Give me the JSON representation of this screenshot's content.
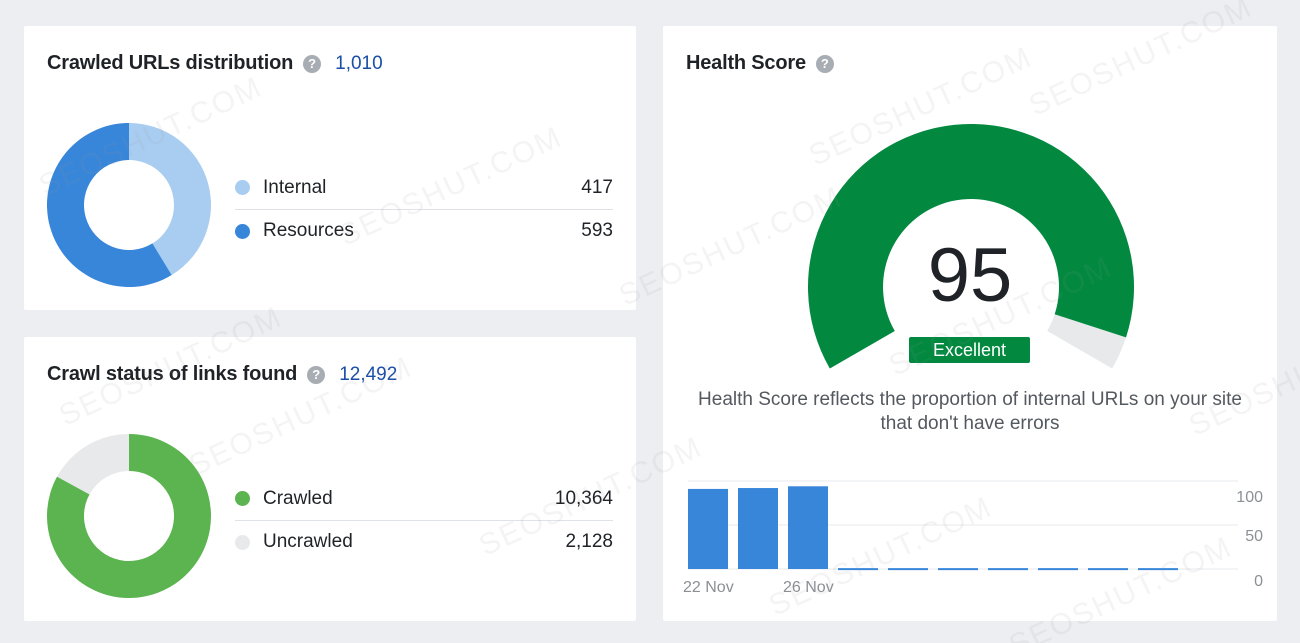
{
  "crawled_urls": {
    "title": "Crawled URLs distribution",
    "help_icon": "?",
    "total": "1,010",
    "legend": [
      {
        "label": "Internal",
        "value": "417",
        "color": "#a9cdf1"
      },
      {
        "label": "Resources",
        "value": "593",
        "color": "#3886d9"
      }
    ]
  },
  "crawl_status": {
    "title": "Crawl status of links found",
    "help_icon": "?",
    "total": "12,492",
    "legend": [
      {
        "label": "Crawled",
        "value": "10,364",
        "color": "#5bb450"
      },
      {
        "label": "Uncrawled",
        "value": "2,128",
        "color": "#e8e9eb"
      }
    ]
  },
  "health": {
    "title": "Health Score",
    "help_icon": "?",
    "score": "95",
    "score_value": 95,
    "rating": "Excellent",
    "description": "Health Score reflects the proportion of internal URLs on your site that don't have errors",
    "gauge_color": "#02893f",
    "gauge_track_color": "#e8e9eb",
    "history": {
      "bars": [
        91,
        92,
        94,
        1,
        1,
        1,
        1,
        1,
        1,
        1
      ],
      "y_ticks": [
        "100",
        "50",
        "0"
      ],
      "x_ticks": [
        "22 Nov",
        "26 Nov"
      ],
      "bar_color": "#3886d9",
      "ylim": [
        0,
        100
      ]
    }
  },
  "watermark": "SEOSHUT.COM"
}
